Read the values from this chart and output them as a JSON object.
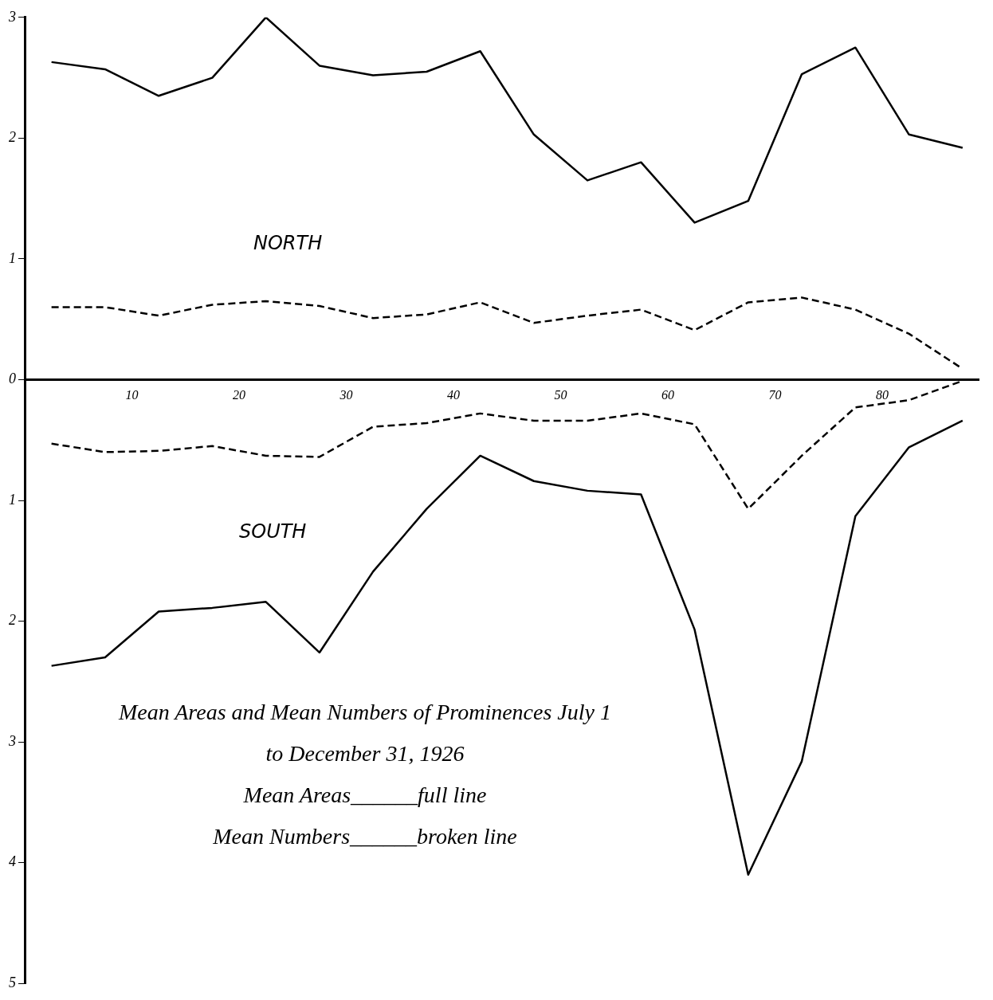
{
  "chart_data": {
    "type": "line",
    "title": "Mean Areas and Mean Numbers of Prominences July 1 to December 31, 1926",
    "x": [
      2.5,
      7.5,
      12.5,
      17.5,
      22.5,
      27.5,
      32.5,
      37.5,
      42.5,
      47.5,
      52.5,
      57.5,
      62.5,
      67.5,
      72.5,
      77.5,
      82.5,
      87.5
    ],
    "series": [
      {
        "color": "#000000",
        "line_style": "solid",
        "values": [
          2.63,
          2.57,
          2.35,
          2.5,
          3.0,
          2.6,
          2.52,
          2.55,
          2.72,
          2.03,
          1.65,
          1.8,
          1.3,
          1.48,
          2.53,
          2.75,
          2.03,
          1.92
        ]
      },
      {
        "color": "#000000",
        "line_style": "dashed",
        "values": [
          0.6,
          0.6,
          0.53,
          0.62,
          0.65,
          0.61,
          0.51,
          0.54,
          0.64,
          0.47,
          0.53,
          0.58,
          0.41,
          0.64,
          0.68,
          0.58,
          0.38,
          0.09
        ]
      },
      {
        "color": "#000000",
        "line_style": "dashed",
        "values": [
          -0.53,
          -0.6,
          -0.59,
          -0.55,
          -0.63,
          -0.64,
          -0.39,
          -0.36,
          -0.28,
          -0.34,
          -0.34,
          -0.28,
          -0.37,
          -1.07,
          -0.63,
          -0.23,
          -0.17,
          -0.01
        ]
      },
      {
        "color": "#000000",
        "line_style": "solid",
        "values": [
          -2.37,
          -2.3,
          -1.92,
          -1.89,
          -1.84,
          -2.26,
          -1.59,
          -1.07,
          -0.63,
          -0.84,
          -0.92,
          -0.95,
          -2.07,
          -4.1,
          -3.16,
          -1.13,
          -0.56,
          -0.34
        ]
      }
    ],
    "xlim": [
      0,
      89
    ],
    "xticks": [
      10,
      20,
      30,
      40,
      50,
      60,
      70,
      80
    ],
    "ylim": [
      -5,
      3
    ],
    "yticks": [
      {
        "value": -5,
        "label": "5"
      },
      {
        "value": -4,
        "label": "4"
      },
      {
        "value": -3,
        "label": "3"
      },
      {
        "value": -2,
        "label": "2"
      },
      {
        "value": -1,
        "label": "1"
      },
      0,
      1,
      2,
      3
    ],
    "grid": false,
    "legend": false,
    "marker": "none",
    "annotations": [
      "NORTH",
      "SOUTH",
      "Mean Areas______full line",
      "Mean Numbers______broken line"
    ]
  }
}
